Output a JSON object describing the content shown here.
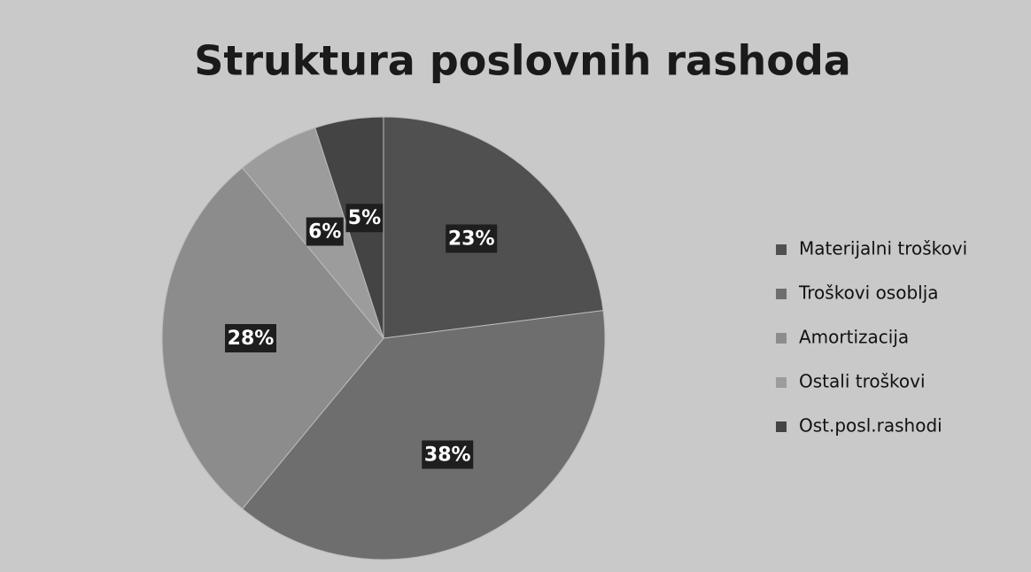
{
  "chart_data": {
    "type": "pie",
    "title": "Struktura poslovnih rashoda",
    "categories": [
      "Materijalni troškovi",
      "Troškovi osoblja",
      "Amortizacija",
      "Ostali troškovi",
      "Ost.posl.rashodi"
    ],
    "values": [
      23,
      38,
      28,
      6,
      5
    ],
    "value_labels": [
      "23%",
      "38%",
      "28%",
      "6%",
      "5%"
    ],
    "colors": [
      "#505050",
      "#6e6e6e",
      "#8c8c8c",
      "#9c9c9c",
      "#444444"
    ],
    "legend": "right"
  }
}
